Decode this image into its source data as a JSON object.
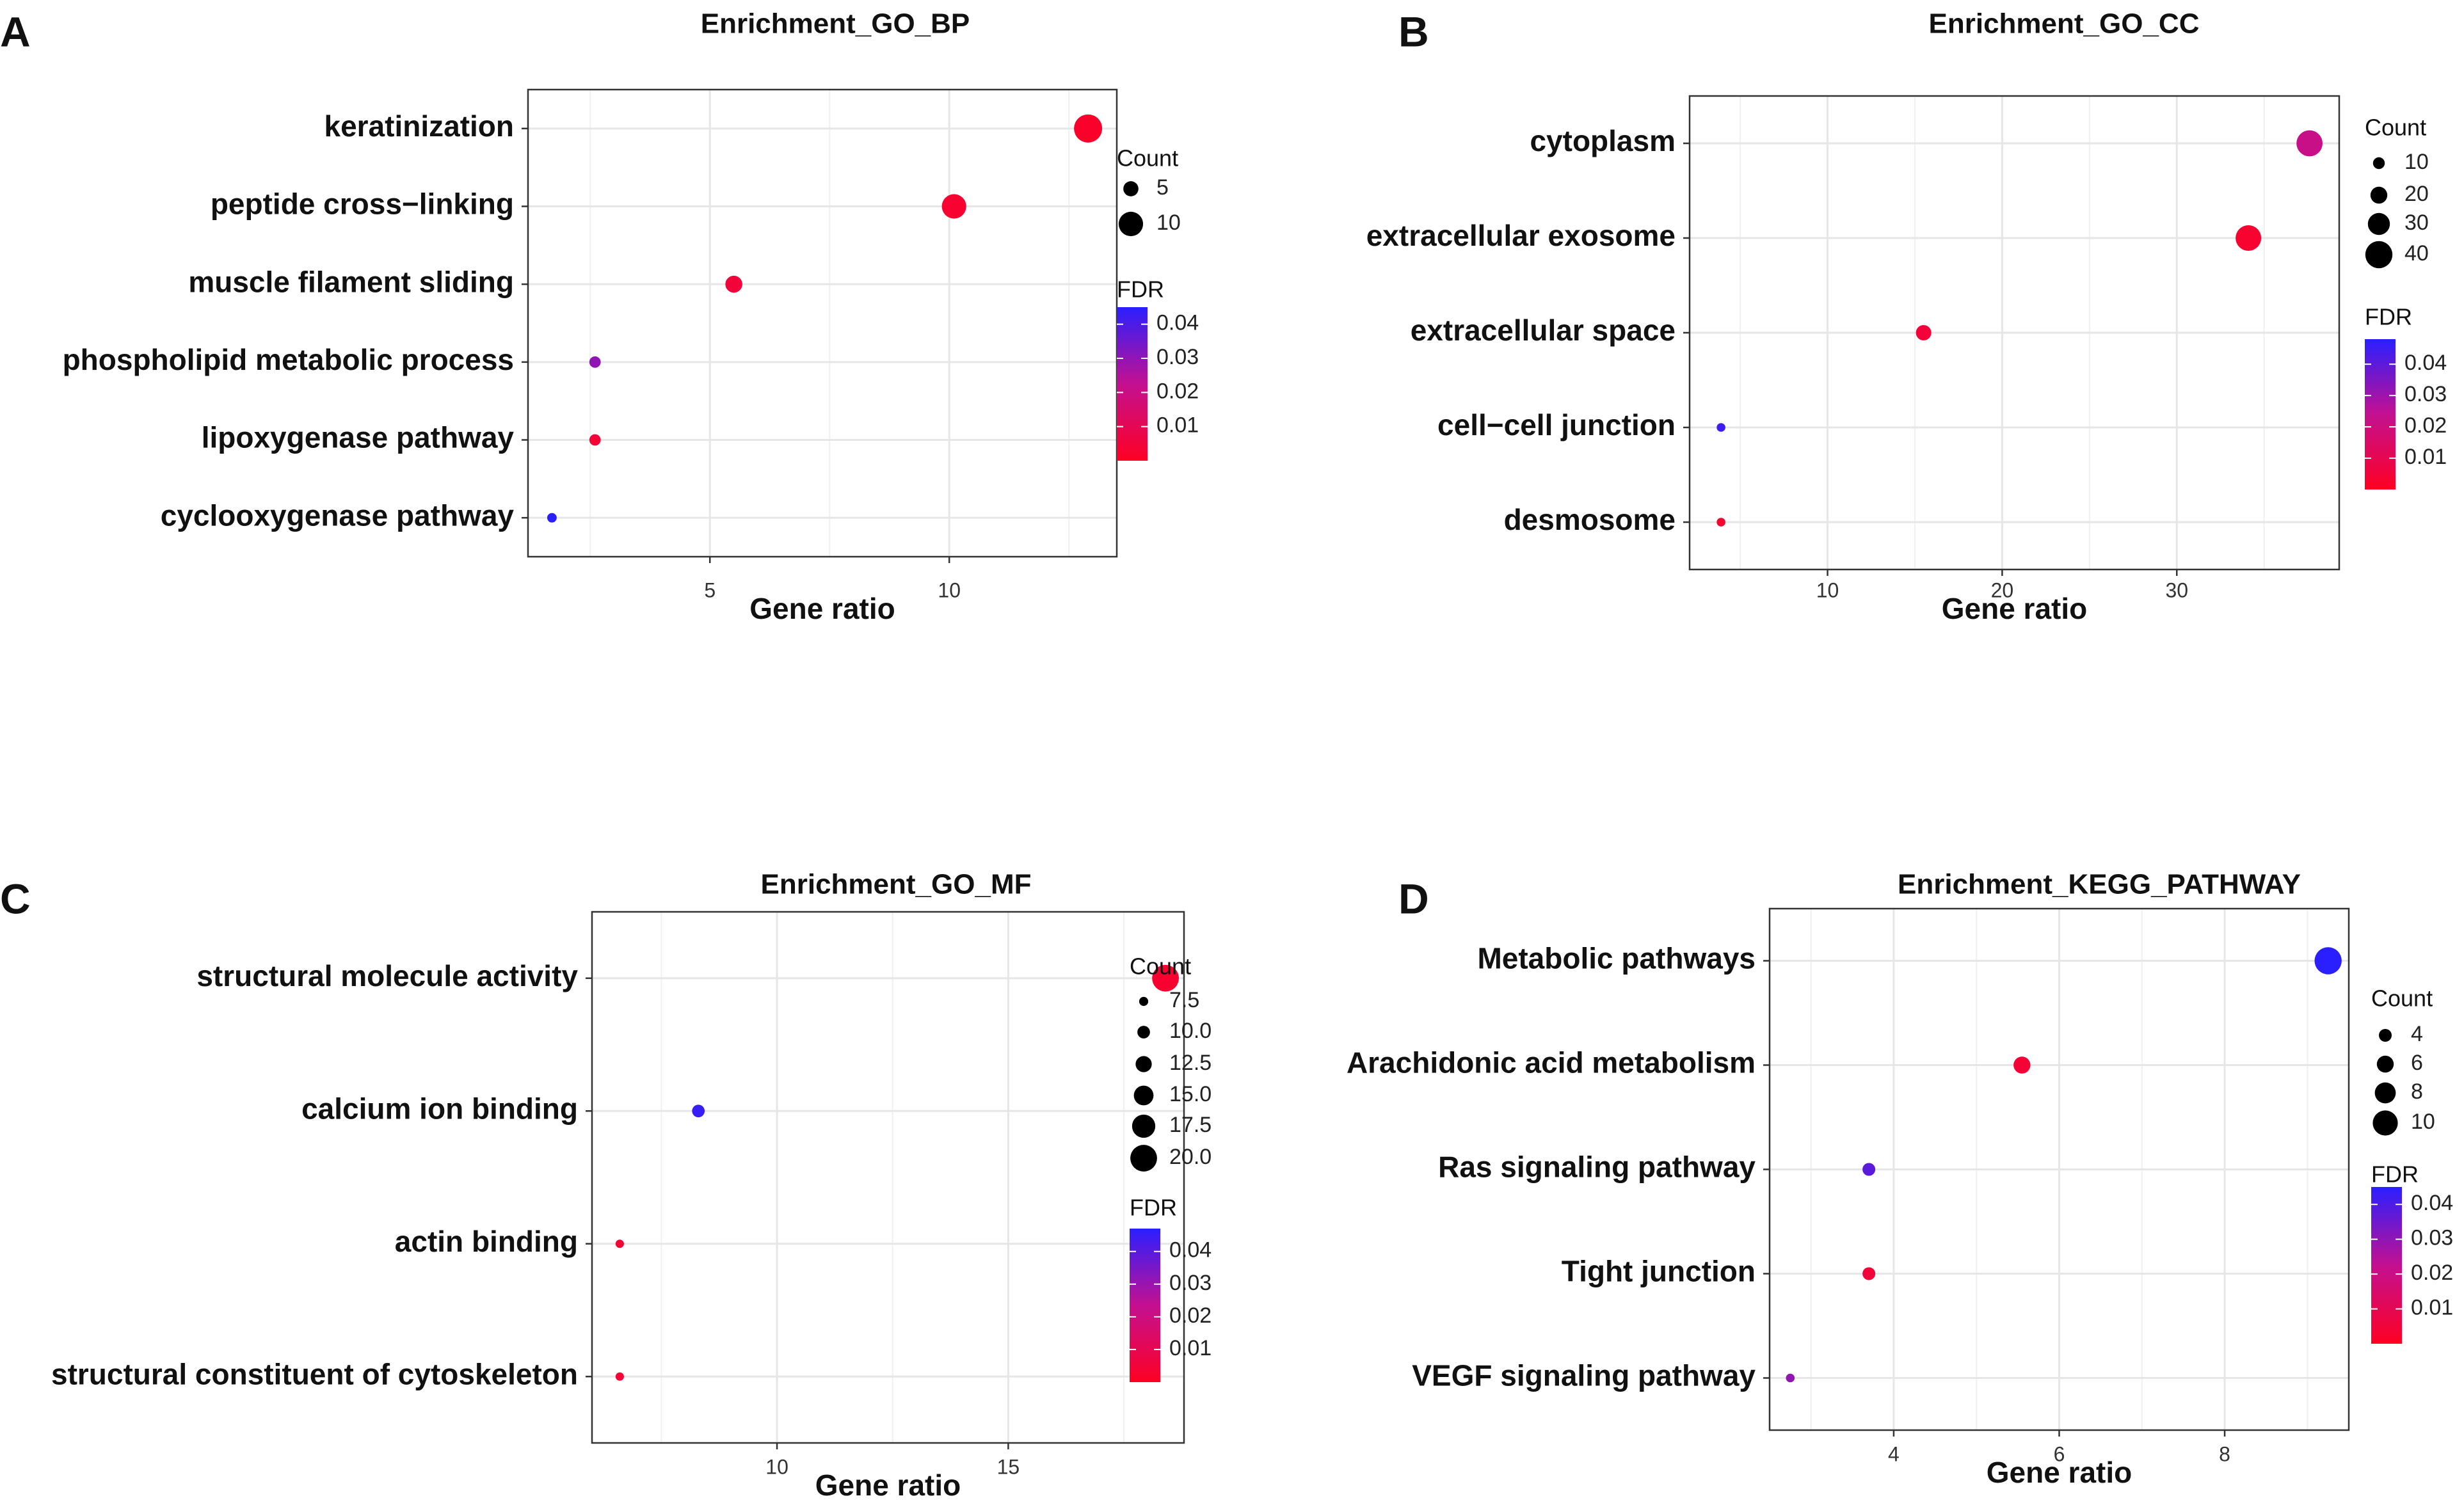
{
  "figure": {
    "colors": {
      "fdr_low": "#ff0022",
      "fdr_high": "#2a1fff",
      "grid": "#e6e6e6",
      "frame": "#333333"
    }
  },
  "chart_data": [
    {
      "panel_label": "A",
      "type": "scatter",
      "title": "Enrichment_GO_BP",
      "xlabel": "Gene ratio",
      "xlim": [
        1.2,
        13.5
      ],
      "xticks": [
        5,
        10
      ],
      "xtick_labels": [
        "5",
        "10"
      ],
      "xminor": [
        2.5,
        7.5,
        12.5
      ],
      "terms": [
        {
          "label": "keratinization",
          "ratio": 12.9,
          "count": 12,
          "fdr": 0.002
        },
        {
          "label": "peptide cross−linking",
          "ratio": 10.1,
          "count": 10,
          "fdr": 0.003
        },
        {
          "label": "muscle filament sliding",
          "ratio": 5.5,
          "count": 6,
          "fdr": 0.005
        },
        {
          "label": "phospholipid metabolic process",
          "ratio": 2.6,
          "count": 3,
          "fdr": 0.03
        },
        {
          "label": "lipoxygenase pathway",
          "ratio": 2.6,
          "count": 3,
          "fdr": 0.004
        },
        {
          "label": "cyclooxygenase pathway",
          "ratio": 1.7,
          "count": 2,
          "fdr": 0.045
        }
      ],
      "size_legend": {
        "title": "Count",
        "values": [
          5,
          10
        ],
        "labels": [
          "5",
          "10"
        ]
      },
      "color_legend": {
        "title": "FDR",
        "min": 0,
        "max": 0.045,
        "ticks": [
          0.04,
          0.03,
          0.02,
          0.01
        ],
        "tick_labels": [
          "0.04",
          "0.03",
          "0.02",
          "0.01"
        ]
      },
      "size_range": [
        1,
        12
      ]
    },
    {
      "panel_label": "B",
      "type": "scatter",
      "title": "Enrichment_GO_CC",
      "xlabel": "Gene ratio",
      "xlim": [
        2.1,
        39.3
      ],
      "xticks": [
        10,
        20,
        30
      ],
      "xtick_labels": [
        "10",
        "20",
        "30"
      ],
      "xminor": [
        5,
        15,
        25,
        35
      ],
      "terms": [
        {
          "label": "cytoplasm",
          "ratio": 37.6,
          "count": 38,
          "fdr": 0.022
        },
        {
          "label": "extracellular exosome",
          "ratio": 34.1,
          "count": 37,
          "fdr": 0.003
        },
        {
          "label": "extracellular space",
          "ratio": 15.5,
          "count": 17,
          "fdr": 0.005
        },
        {
          "label": "cell−cell junction",
          "ratio": 3.9,
          "count": 4,
          "fdr": 0.045
        },
        {
          "label": "desmosome",
          "ratio": 3.9,
          "count": 4,
          "fdr": 0.003
        }
      ],
      "size_legend": {
        "title": "Count",
        "values": [
          10,
          20,
          30,
          40
        ],
        "labels": [
          "10",
          "20",
          "30",
          "40"
        ]
      },
      "color_legend": {
        "title": "FDR",
        "min": 0,
        "max": 0.048,
        "ticks": [
          0.04,
          0.03,
          0.02,
          0.01
        ],
        "tick_labels": [
          "0.04",
          "0.03",
          "0.02",
          "0.01"
        ]
      },
      "size_range": [
        2,
        42
      ]
    },
    {
      "panel_label": "C",
      "type": "scatter",
      "title": "Enrichment_GO_MF",
      "xlabel": "Gene ratio",
      "xlim": [
        6.0,
        18.8
      ],
      "xticks": [
        10,
        15
      ],
      "xtick_labels": [
        "10",
        "15"
      ],
      "xminor": [
        7.5,
        12.5,
        17.5
      ],
      "terms": [
        {
          "label": "structural molecule activity",
          "ratio": 18.4,
          "count": 20,
          "fdr": 0.003
        },
        {
          "label": "calcium ion binding",
          "ratio": 8.3,
          "count": 10,
          "fdr": 0.045
        },
        {
          "label": "actin binding",
          "ratio": 6.6,
          "count": 7,
          "fdr": 0.004
        },
        {
          "label": "structural constituent of cytoskeleton",
          "ratio": 6.6,
          "count": 7,
          "fdr": 0.004
        }
      ],
      "size_legend": {
        "title": "Count",
        "values": [
          7.5,
          10,
          12.5,
          15,
          17.5,
          20
        ],
        "labels": [
          "7.5",
          "10.0",
          "12.5",
          "15.0",
          "17.5",
          "20.0"
        ]
      },
      "color_legend": {
        "title": "FDR",
        "min": 0,
        "max": 0.047,
        "ticks": [
          0.04,
          0.03,
          0.02,
          0.01
        ],
        "tick_labels": [
          "0.04",
          "0.03",
          "0.02",
          "0.01"
        ]
      },
      "size_range": [
        6.5,
        21
      ]
    },
    {
      "panel_label": "D",
      "type": "scatter",
      "title": "Enrichment_KEGG_PATHWAY",
      "xlabel": "Gene ratio",
      "xlim": [
        2.5,
        9.5
      ],
      "xticks": [
        4,
        6,
        8
      ],
      "xtick_labels": [
        "4",
        "6",
        "8"
      ],
      "xminor": [
        3,
        5,
        7,
        9
      ],
      "terms": [
        {
          "label": "Metabolic pathways",
          "ratio": 9.25,
          "count": 11,
          "fdr": 0.045
        },
        {
          "label": "Arachidonic acid metabolism",
          "ratio": 5.55,
          "count": 6,
          "fdr": 0.004
        },
        {
          "label": "Ras signaling pathway",
          "ratio": 3.7,
          "count": 4,
          "fdr": 0.038
        },
        {
          "label": "Tight junction",
          "ratio": 3.7,
          "count": 4,
          "fdr": 0.005
        },
        {
          "label": "VEGF signaling pathway",
          "ratio": 2.75,
          "count": 2,
          "fdr": 0.03
        }
      ],
      "size_legend": {
        "title": "Count",
        "values": [
          4,
          6,
          8,
          10
        ],
        "labels": [
          "4",
          "6",
          "8",
          "10"
        ]
      },
      "color_legend": {
        "title": "FDR",
        "min": 0,
        "max": 0.045,
        "ticks": [
          0.04,
          0.03,
          0.02,
          0.01
        ],
        "tick_labels": [
          "0.04",
          "0.03",
          "0.02",
          "0.01"
        ]
      },
      "size_range": [
        1.5,
        11.5
      ]
    }
  ]
}
